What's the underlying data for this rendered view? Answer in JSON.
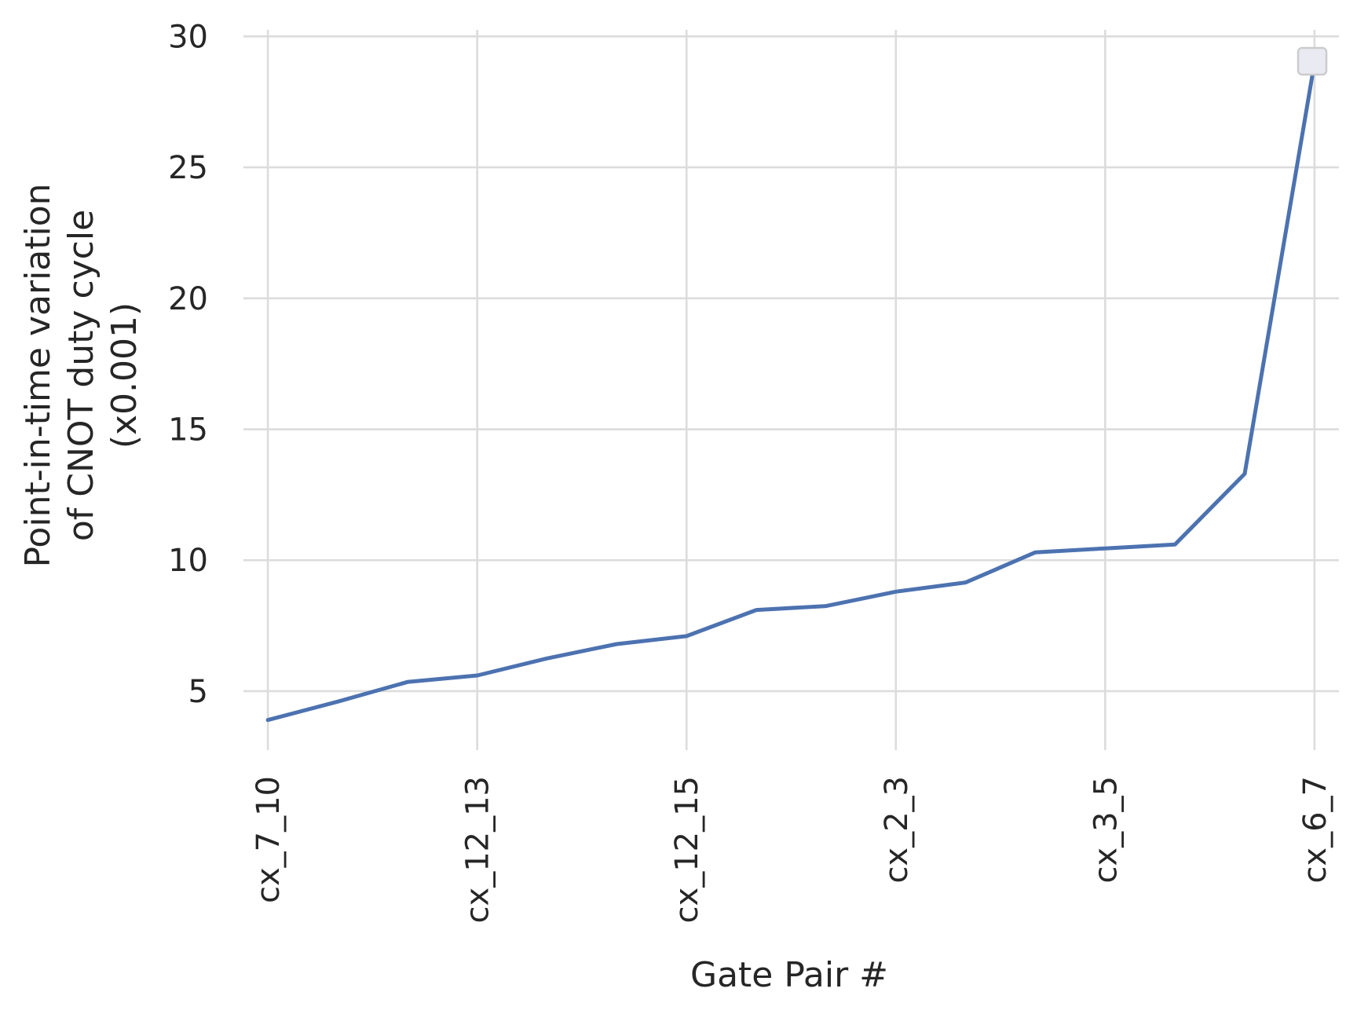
{
  "chart_data": {
    "type": "line",
    "title": "",
    "xlabel": "Gate Pair #",
    "ylabel_lines": [
      "Point-in-time variation",
      "of CNOT duty cycle",
      "(x0.001)"
    ],
    "x_tick_labels": [
      "cx_7_10",
      "cx_12_13",
      "cx_12_15",
      "cx_2_3",
      "cx_3_5",
      "cx_6_7"
    ],
    "x_tick_indices": [
      0,
      3,
      6,
      9,
      12,
      15
    ],
    "y_ticks": [
      5,
      10,
      15,
      20,
      25,
      30
    ],
    "ylim": [
      2.75,
      30.25
    ],
    "xlim": [
      -0.35,
      15.35
    ],
    "grid": true,
    "legend": "top-right (empty)",
    "series": [
      {
        "name": "",
        "color": "#4c72b0",
        "x": [
          0,
          1,
          2,
          3,
          4,
          5,
          6,
          7,
          8,
          9,
          10,
          11,
          12,
          13,
          14,
          15
        ],
        "values": [
          3.9,
          4.6,
          5.35,
          5.6,
          6.25,
          6.8,
          7.1,
          8.1,
          8.25,
          8.8,
          9.15,
          10.3,
          10.45,
          10.6,
          13.3,
          29.0
        ]
      }
    ]
  }
}
